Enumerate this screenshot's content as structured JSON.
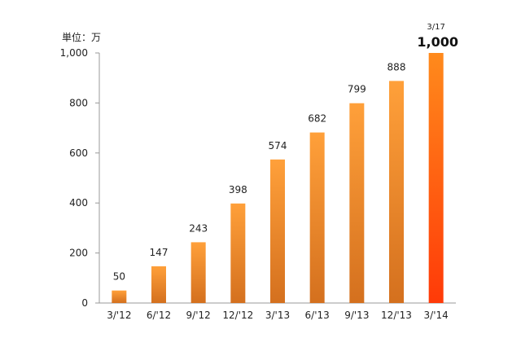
{
  "chart_data": {
    "type": "bar",
    "unit_label": "単位：万",
    "categories": [
      "3/'12",
      "6/'12",
      "9/'12",
      "12/'12",
      "3/'13",
      "6/'13",
      "9/'13",
      "12/'13",
      "3/'14"
    ],
    "values": [
      50,
      147,
      243,
      398,
      574,
      682,
      799,
      888,
      1000
    ],
    "data_labels": [
      "50",
      "147",
      "243",
      "398",
      "574",
      "682",
      "799",
      "888",
      "1,000"
    ],
    "highlight": {
      "index": 8,
      "date_label": "3/17",
      "value_label": "1,000"
    },
    "ylim": [
      0,
      1000
    ],
    "yticks": [
      0,
      200,
      400,
      600,
      800,
      1000
    ],
    "ytick_labels": [
      "0",
      "200",
      "400",
      "600",
      "800",
      "1,000"
    ],
    "grid": false,
    "legend": "none",
    "colors": {
      "bar_top": "#ffa03a",
      "bar_bottom": "#d4701e",
      "highlight_top": "#ff8a1c",
      "highlight_bottom": "#ff3a08",
      "axis": "#999999"
    }
  }
}
